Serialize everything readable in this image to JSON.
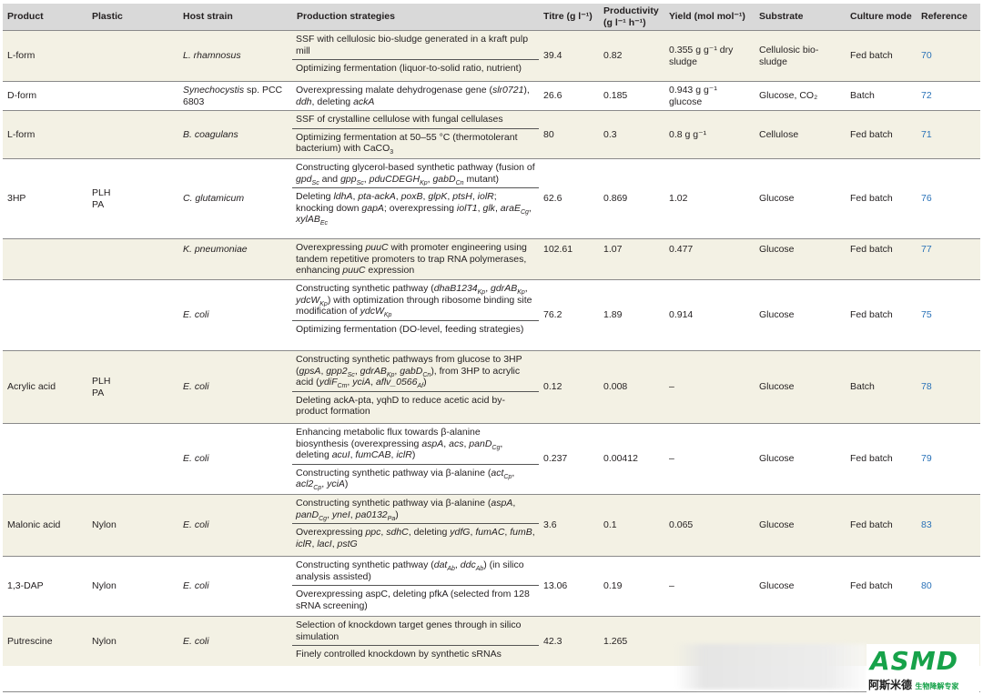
{
  "headers": {
    "product": "Product",
    "plastic": "Plastic",
    "host": "Host strain",
    "strategies": "Production strategies",
    "titre": "Titre (g l⁻¹)",
    "productivity": "Productivity (g l⁻¹ h⁻¹)",
    "yield": "Yield (mol mol⁻¹)",
    "substrate": "Substrate",
    "culture": "Culture mode",
    "reference": "Reference"
  },
  "rows": [
    {
      "product": "L-form",
      "plastic": "",
      "host": "L. rhamnosus",
      "titre": "39.4",
      "productivity": "0.82",
      "yield": "0.355 g g⁻¹ dry sludge",
      "substrate": "Cellulosic bio-sludge",
      "culture": "Fed batch",
      "ref": "70"
    },
    {
      "product": "D-form",
      "plastic": "",
      "host": "Synechocystis sp. PCC 6803",
      "titre": "26.6",
      "productivity": "0.185",
      "yield": "0.943 g g⁻¹ glucose",
      "substrate": "Glucose, CO₂",
      "culture": "Batch",
      "ref": "72"
    },
    {
      "product": "L-form",
      "plastic": "",
      "host": "B. coagulans",
      "titre": "80",
      "productivity": "0.3",
      "yield": "0.8 g g⁻¹",
      "substrate": "Cellulose",
      "culture": "Fed batch",
      "ref": "71"
    },
    {
      "product": "3HP",
      "plastic": "PLH PA",
      "host": "C. glutamicum",
      "titre": "62.6",
      "productivity": "0.869",
      "yield": "1.02",
      "substrate": "Glucose",
      "culture": "Fed batch",
      "ref": "76"
    },
    {
      "product": "",
      "plastic": "",
      "host": "K. pneumoniae",
      "titre": "102.61",
      "productivity": "1.07",
      "yield": "0.477",
      "substrate": "Glucose",
      "culture": "Fed batch",
      "ref": "77"
    },
    {
      "product": "",
      "plastic": "",
      "host": "E. coli",
      "titre": "76.2",
      "productivity": "1.89",
      "yield": "0.914",
      "substrate": "Glucose",
      "culture": "Fed batch",
      "ref": "75"
    },
    {
      "product": "Acrylic acid",
      "plastic": "PLH PA",
      "host": "E. coli",
      "titre": "0.12",
      "productivity": "0.008",
      "yield": "–",
      "substrate": "Glucose",
      "culture": "Batch",
      "ref": "78"
    },
    {
      "product": "",
      "plastic": "",
      "host": "E. coli",
      "titre": "0.237",
      "productivity": "0.00412",
      "yield": "–",
      "substrate": "Glucose",
      "culture": "Fed batch",
      "ref": "79"
    },
    {
      "product": "Malonic acid",
      "plastic": "Nylon",
      "host": "E. coli",
      "titre": "3.6",
      "productivity": "0.1",
      "yield": "0.065",
      "substrate": "Glucose",
      "culture": "Fed batch",
      "ref": "83"
    },
    {
      "product": "1,3-DAP",
      "plastic": "Nylon",
      "host": "E. coli",
      "titre": "13.06",
      "productivity": "0.19",
      "yield": "–",
      "substrate": "Glucose",
      "culture": "Fed batch",
      "ref": "80"
    },
    {
      "product": "Putrescine",
      "plastic": "Nylon",
      "host": "E. coli",
      "titre": "42.3",
      "productivity": "1.265",
      "yield": "",
      "substrate": "",
      "culture": "",
      "ref": ""
    }
  ],
  "strategies": {
    "r0a": "SSF with cellulosic bio-sludge generated in a kraft pulp mill",
    "r0b": "Optimizing fermentation (liquor-to-solid ratio, nutrient)",
    "r2a": "SSF of crystalline cellulose with fungal cellulases",
    "r5b": "Optimizing fermentation (DO-level, feeding strategies)",
    "r6b": "Deleting ackA-pta, yqhD to reduce acetic acid by-product formation",
    "r9b": "Overexpressing aspC, deleting pfkA (selected from 128 sRNA screening)",
    "r10a": "Selection of knockdown target genes through in silico simulation",
    "r10b": "Finely controlled knockdown by synthetic sRNAs"
  },
  "logo": {
    "brand": "ASMD",
    "cn_name": "阿斯米德",
    "cn_tag": "生物降解专家",
    "colors": {
      "green": "#17a24a",
      "blue": "#0c3f8a"
    }
  },
  "colors": {
    "header_bg": "#d9d9d9",
    "band_bg": "#f3f1e4",
    "ref_link": "#2a72b8"
  }
}
